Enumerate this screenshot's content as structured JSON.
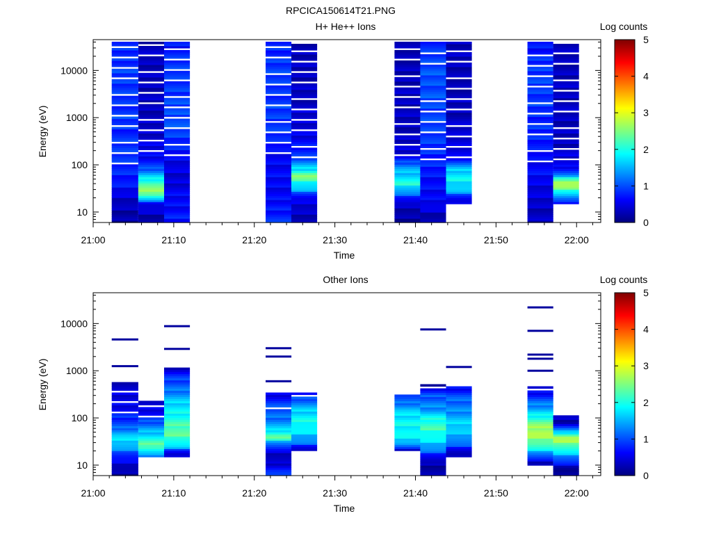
{
  "figure_title": "RPCICA150614T21.PNG",
  "colorbar": {
    "label": "Log counts",
    "ticks": [
      "0",
      "1",
      "2",
      "3",
      "4",
      "5"
    ],
    "range": [
      0,
      5
    ],
    "colormap": [
      "#00007f",
      "#0000ff",
      "#007fff",
      "#00ffff",
      "#7fff7f",
      "#ffff00",
      "#ff7f00",
      "#ff0000",
      "#7f0000"
    ]
  },
  "chart_data": [
    {
      "type": "heatmap",
      "title": "H+ He++ Ions",
      "xlabel": "Time",
      "ylabel": "Energy (eV)",
      "x_ticks": [
        "21:00",
        "21:10",
        "21:20",
        "21:30",
        "21:40",
        "21:50",
        "22:00"
      ],
      "y_ticks": [
        "10",
        "100",
        "1000",
        "10000"
      ],
      "y_scale": "log",
      "ylim": [
        6,
        45000
      ],
      "xlim_minutes": [
        0,
        63
      ],
      "columns": [
        {
          "t_start": 2.3,
          "t_end": 5.6,
          "e_min": 6,
          "e_max": 40000,
          "sample": [
            [
              10,
              0.2
            ],
            [
              20,
              0.4
            ],
            [
              40,
              0.7
            ],
            [
              70,
              0.8
            ],
            [
              150,
              0.9
            ],
            [
              400,
              0.8
            ],
            [
              1000,
              0.9
            ],
            [
              3000,
              0.9
            ],
            [
              10000,
              0.9
            ],
            [
              30000,
              0.8
            ]
          ]
        },
        {
          "t_start": 5.6,
          "t_end": 8.8,
          "e_min": 6,
          "e_max": 40000,
          "sample": [
            [
              8,
              0.2
            ],
            [
              15,
              0.6
            ],
            [
              25,
              2.6
            ],
            [
              40,
              2.3
            ],
            [
              60,
              1.6
            ],
            [
              90,
              0.9
            ],
            [
              150,
              0.6
            ],
            [
              400,
              0.4
            ],
            [
              1000,
              0.3
            ],
            [
              5000,
              0.3
            ],
            [
              30000,
              0.3
            ]
          ]
        },
        {
          "t_start": 8.8,
          "t_end": 12.0,
          "e_min": 6,
          "e_max": 40000,
          "sample": [
            [
              8,
              0.7
            ],
            [
              20,
              0.6
            ],
            [
              60,
              0.4
            ],
            [
              150,
              0.6
            ],
            [
              400,
              0.9
            ],
            [
              1000,
              1.0
            ],
            [
              3000,
              0.9
            ],
            [
              10000,
              0.9
            ],
            [
              30000,
              0.7
            ]
          ]
        },
        {
          "t_start": 21.4,
          "t_end": 24.6,
          "e_min": 6,
          "e_max": 40000,
          "sample": [
            [
              8,
              0.8
            ],
            [
              20,
              0.6
            ],
            [
              60,
              0.6
            ],
            [
              150,
              0.6
            ],
            [
              400,
              0.8
            ],
            [
              1000,
              0.9
            ],
            [
              3000,
              0.9
            ],
            [
              10000,
              0.9
            ],
            [
              30000,
              0.8
            ]
          ]
        },
        {
          "t_start": 24.6,
          "t_end": 27.8,
          "e_min": 6,
          "e_max": 35000,
          "sample": [
            [
              8,
              0.3
            ],
            [
              20,
              0.5
            ],
            [
              30,
              1.5
            ],
            [
              45,
              2.0
            ],
            [
              60,
              2.6
            ],
            [
              80,
              1.8
            ],
            [
              150,
              0.9
            ],
            [
              400,
              0.5
            ],
            [
              1000,
              0.4
            ],
            [
              5000,
              0.3
            ],
            [
              30000,
              0.3
            ]
          ]
        },
        {
          "t_start": 37.4,
          "t_end": 40.6,
          "e_min": 6,
          "e_max": 40000,
          "sample": [
            [
              8,
              0.2
            ],
            [
              15,
              0.3
            ],
            [
              25,
              1.2
            ],
            [
              40,
              2.0
            ],
            [
              60,
              1.7
            ],
            [
              90,
              1.4
            ],
            [
              150,
              0.5
            ],
            [
              400,
              0.3
            ],
            [
              1000,
              0.3
            ],
            [
              5000,
              0.3
            ],
            [
              30000,
              0.2
            ]
          ]
        },
        {
          "t_start": 40.6,
          "t_end": 43.8,
          "e_min": 6,
          "e_max": 40000,
          "sample": [
            [
              8,
              0.2
            ],
            [
              15,
              0.6
            ],
            [
              30,
              0.6
            ],
            [
              60,
              0.7
            ],
            [
              150,
              0.8
            ],
            [
              400,
              0.9
            ],
            [
              1000,
              0.9
            ],
            [
              3000,
              1.0
            ],
            [
              10000,
              1.0
            ],
            [
              30000,
              0.8
            ]
          ]
        },
        {
          "t_start": 43.8,
          "t_end": 47.0,
          "e_min": 15,
          "e_max": 40000,
          "sample": [
            [
              18,
              0.4
            ],
            [
              30,
              1.6
            ],
            [
              50,
              1.9
            ],
            [
              80,
              1.6
            ],
            [
              150,
              0.6
            ],
            [
              400,
              0.4
            ],
            [
              1000,
              0.3
            ],
            [
              5000,
              0.3
            ],
            [
              30000,
              0.3
            ]
          ]
        },
        {
          "t_start": 53.9,
          "t_end": 57.1,
          "e_min": 6,
          "e_max": 40000,
          "sample": [
            [
              8,
              0.3
            ],
            [
              20,
              0.4
            ],
            [
              60,
              0.6
            ],
            [
              150,
              0.7
            ],
            [
              400,
              0.8
            ],
            [
              1000,
              0.8
            ],
            [
              3000,
              0.9
            ],
            [
              10000,
              0.9
            ],
            [
              30000,
              0.7
            ]
          ]
        },
        {
          "t_start": 57.1,
          "t_end": 60.3,
          "e_min": 15,
          "e_max": 40000,
          "sample": [
            [
              18,
              0.8
            ],
            [
              25,
              1.8
            ],
            [
              35,
              2.6
            ],
            [
              45,
              2.8
            ],
            [
              60,
              1.2
            ],
            [
              100,
              0.5
            ],
            [
              300,
              0.3
            ],
            [
              1000,
              0.3
            ],
            [
              5000,
              0.3
            ],
            [
              30000,
              0.3
            ]
          ]
        }
      ]
    },
    {
      "type": "heatmap",
      "title": "Other Ions",
      "xlabel": "Time",
      "ylabel": "Energy (eV)",
      "x_ticks": [
        "21:00",
        "21:10",
        "21:20",
        "21:30",
        "21:40",
        "21:50",
        "22:00"
      ],
      "y_ticks": [
        "10",
        "100",
        "1000",
        "10000"
      ],
      "y_scale": "log",
      "ylim": [
        6,
        45000
      ],
      "xlim_minutes": [
        0,
        63
      ],
      "columns": [
        {
          "t_start": 2.3,
          "t_end": 5.6,
          "e_min": 6,
          "e_max": 600,
          "sample": [
            [
              8,
              0.2
            ],
            [
              15,
              0.7
            ],
            [
              20,
              1.2
            ],
            [
              30,
              1.7
            ],
            [
              45,
              1.6
            ],
            [
              70,
              1.0
            ],
            [
              150,
              0.6
            ],
            [
              400,
              0.4
            ]
          ],
          "sparse": [
            1250,
            4600
          ]
        },
        {
          "t_start": 5.6,
          "t_end": 8.8,
          "e_min": 15,
          "e_max": 230,
          "sample": [
            [
              18,
              1.4
            ],
            [
              25,
              2.4
            ],
            [
              35,
              2.0
            ],
            [
              60,
              1.4
            ],
            [
              100,
              0.8
            ],
            [
              200,
              0.4
            ]
          ]
        },
        {
          "t_start": 8.8,
          "t_end": 12.0,
          "e_min": 15,
          "e_max": 1200,
          "sample": [
            [
              18,
              0.4
            ],
            [
              25,
              1.6
            ],
            [
              40,
              2.3
            ],
            [
              60,
              2.3
            ],
            [
              100,
              2.0
            ],
            [
              200,
              1.7
            ],
            [
              400,
              1.2
            ],
            [
              800,
              0.8
            ],
            [
              1150,
              0.4
            ]
          ],
          "sparse": [
            2900,
            8800
          ]
        },
        {
          "t_start": 21.4,
          "t_end": 24.6,
          "e_min": 6,
          "e_max": 350,
          "sample": [
            [
              8,
              0.8
            ],
            [
              12,
              0.3
            ],
            [
              20,
              0.4
            ],
            [
              30,
              1.4
            ],
            [
              40,
              2.4
            ],
            [
              60,
              1.6
            ],
            [
              100,
              1.2
            ],
            [
              200,
              0.9
            ],
            [
              330,
              0.5
            ]
          ],
          "sparse": [
            600,
            2000,
            3000
          ]
        },
        {
          "t_start": 24.6,
          "t_end": 27.8,
          "e_min": 20,
          "e_max": 350,
          "sample": [
            [
              22,
              0.4
            ],
            [
              30,
              1.2
            ],
            [
              50,
              1.7
            ],
            [
              80,
              2.0
            ],
            [
              150,
              1.6
            ],
            [
              250,
              1.1
            ],
            [
              330,
              0.6
            ]
          ]
        },
        {
          "t_start": 37.4,
          "t_end": 40.6,
          "e_min": 20,
          "e_max": 300,
          "sample": [
            [
              22,
              0.5
            ],
            [
              30,
              1.6
            ],
            [
              50,
              1.9
            ],
            [
              80,
              1.9
            ],
            [
              150,
              1.6
            ],
            [
              250,
              1.0
            ]
          ]
        },
        {
          "t_start": 40.6,
          "t_end": 43.8,
          "e_min": 6,
          "e_max": 500,
          "sample": [
            [
              8,
              0.2
            ],
            [
              12,
              0.2
            ],
            [
              22,
              1.3
            ],
            [
              40,
              1.9
            ],
            [
              60,
              2.2
            ],
            [
              90,
              2.0
            ],
            [
              150,
              1.4
            ],
            [
              300,
              1.0
            ],
            [
              480,
              0.3
            ]
          ],
          "sparse": [
            7500
          ]
        },
        {
          "t_start": 43.8,
          "t_end": 47.0,
          "e_min": 15,
          "e_max": 480,
          "sample": [
            [
              18,
              0.2
            ],
            [
              25,
              0.9
            ],
            [
              40,
              1.5
            ],
            [
              70,
              1.7
            ],
            [
              150,
              1.3
            ],
            [
              300,
              1.0
            ],
            [
              450,
              0.6
            ]
          ],
          "sparse": [
            1200
          ]
        },
        {
          "t_start": 53.9,
          "t_end": 57.1,
          "e_min": 10,
          "e_max": 450,
          "sample": [
            [
              12,
              0.4
            ],
            [
              20,
              1.6
            ],
            [
              30,
              2.4
            ],
            [
              50,
              2.8
            ],
            [
              80,
              2.4
            ],
            [
              150,
              1.5
            ],
            [
              300,
              0.8
            ],
            [
              430,
              0.4
            ]
          ],
          "sparse": [
            1000,
            1800,
            2200,
            7000,
            22000
          ]
        },
        {
          "t_start": 57.1,
          "t_end": 60.3,
          "e_min": 6,
          "e_max": 110,
          "sample": [
            [
              8,
              0.1
            ],
            [
              20,
              1.8
            ],
            [
              30,
              2.6
            ],
            [
              40,
              2.7
            ],
            [
              55,
              1.3
            ],
            [
              80,
              0.3
            ],
            [
              105,
              0.3
            ]
          ]
        }
      ]
    }
  ]
}
